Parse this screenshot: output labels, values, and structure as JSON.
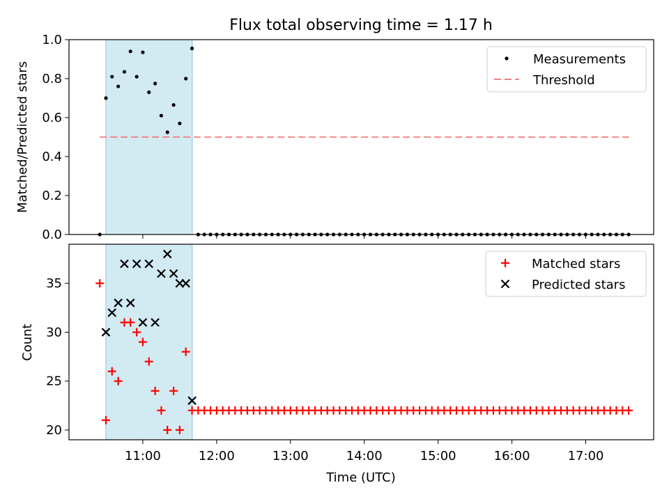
{
  "chart_data": [
    {
      "type": "scatter",
      "title": "Flux total observing time = 1.17 h",
      "xlabel": "",
      "ylabel": "Matched/Predicted stars",
      "ylim": [
        0.0,
        1.0
      ],
      "yticks": [
        0.0,
        0.2,
        0.4,
        0.6,
        0.8,
        1.0
      ],
      "ytick_labels": [
        "0.0",
        "0.2",
        "0.4",
        "0.6",
        "0.8",
        "1.0"
      ],
      "shaded_interval_hours": [
        10.5,
        11.67
      ],
      "series": [
        {
          "name": "Measurements",
          "marker": "dot",
          "color": "#000000",
          "x_hours": [
            10.417,
            10.5,
            10.583,
            10.667,
            10.75,
            10.833,
            10.917,
            11.0,
            11.083,
            11.167,
            11.25,
            11.333,
            11.417,
            11.5,
            11.583,
            11.667
          ],
          "y": [
            0.0,
            0.7,
            0.81,
            0.76,
            0.835,
            0.94,
            0.81,
            0.935,
            0.73,
            0.775,
            0.61,
            0.525,
            0.665,
            0.57,
            0.8,
            0.955
          ],
          "tail": {
            "start_hours": 11.75,
            "end_hours": 17.583,
            "step_hours": 0.0833,
            "value": 0.0
          }
        },
        {
          "name": "Threshold",
          "style": "dashed",
          "color": "#f08080",
          "x_hours": [
            10.417,
            17.583
          ],
          "y": [
            0.5,
            0.5
          ]
        }
      ],
      "legend": {
        "position": "top-right",
        "entries": [
          "Measurements",
          "Threshold"
        ]
      }
    },
    {
      "type": "scatter",
      "title": "",
      "xlabel": "Time (UTC)",
      "ylabel": "Count",
      "ylim": [
        19.0,
        39.0
      ],
      "yticks": [
        20,
        25,
        30,
        35
      ],
      "ytick_labels": [
        "20",
        "25",
        "30",
        "35"
      ],
      "xlim_hours": [
        10.0,
        17.92
      ],
      "xticks_hours": [
        11,
        12,
        13,
        14,
        15,
        16,
        17
      ],
      "xtick_labels": [
        "11:00",
        "12:00",
        "13:00",
        "14:00",
        "15:00",
        "16:00",
        "17:00"
      ],
      "shaded_interval_hours": [
        10.5,
        11.67
      ],
      "series": [
        {
          "name": "Matched stars",
          "marker": "plus",
          "color": "#ff0000",
          "x_hours": [
            10.417,
            10.5,
            10.583,
            10.667,
            10.75,
            10.833,
            10.917,
            11.0,
            11.083,
            11.167,
            11.25,
            11.333,
            11.417,
            11.5,
            11.583,
            11.667
          ],
          "y": [
            35,
            21,
            26,
            25,
            31,
            31,
            30,
            29,
            27,
            24,
            22,
            20,
            24,
            20,
            28,
            22
          ],
          "tail": {
            "start_hours": 11.75,
            "end_hours": 17.583,
            "step_hours": 0.0833,
            "value": 22
          }
        },
        {
          "name": "Predicted stars",
          "marker": "x",
          "color": "#000000",
          "x_hours": [
            10.5,
            10.583,
            10.667,
            10.75,
            10.833,
            10.917,
            11.0,
            11.083,
            11.167,
            11.25,
            11.333,
            11.417,
            11.5,
            11.583,
            11.667
          ],
          "y": [
            30,
            32,
            33,
            37,
            33,
            37,
            31,
            37,
            31,
            36,
            38,
            36,
            35,
            35,
            23
          ]
        }
      ],
      "legend": {
        "position": "top-right",
        "entries": [
          "Matched stars",
          "Predicted stars"
        ]
      }
    }
  ],
  "colors": {
    "shade": "#add8e6",
    "threshold": "#f08080",
    "matched": "#ff0000",
    "predicted": "#000000",
    "measurement": "#000000"
  }
}
